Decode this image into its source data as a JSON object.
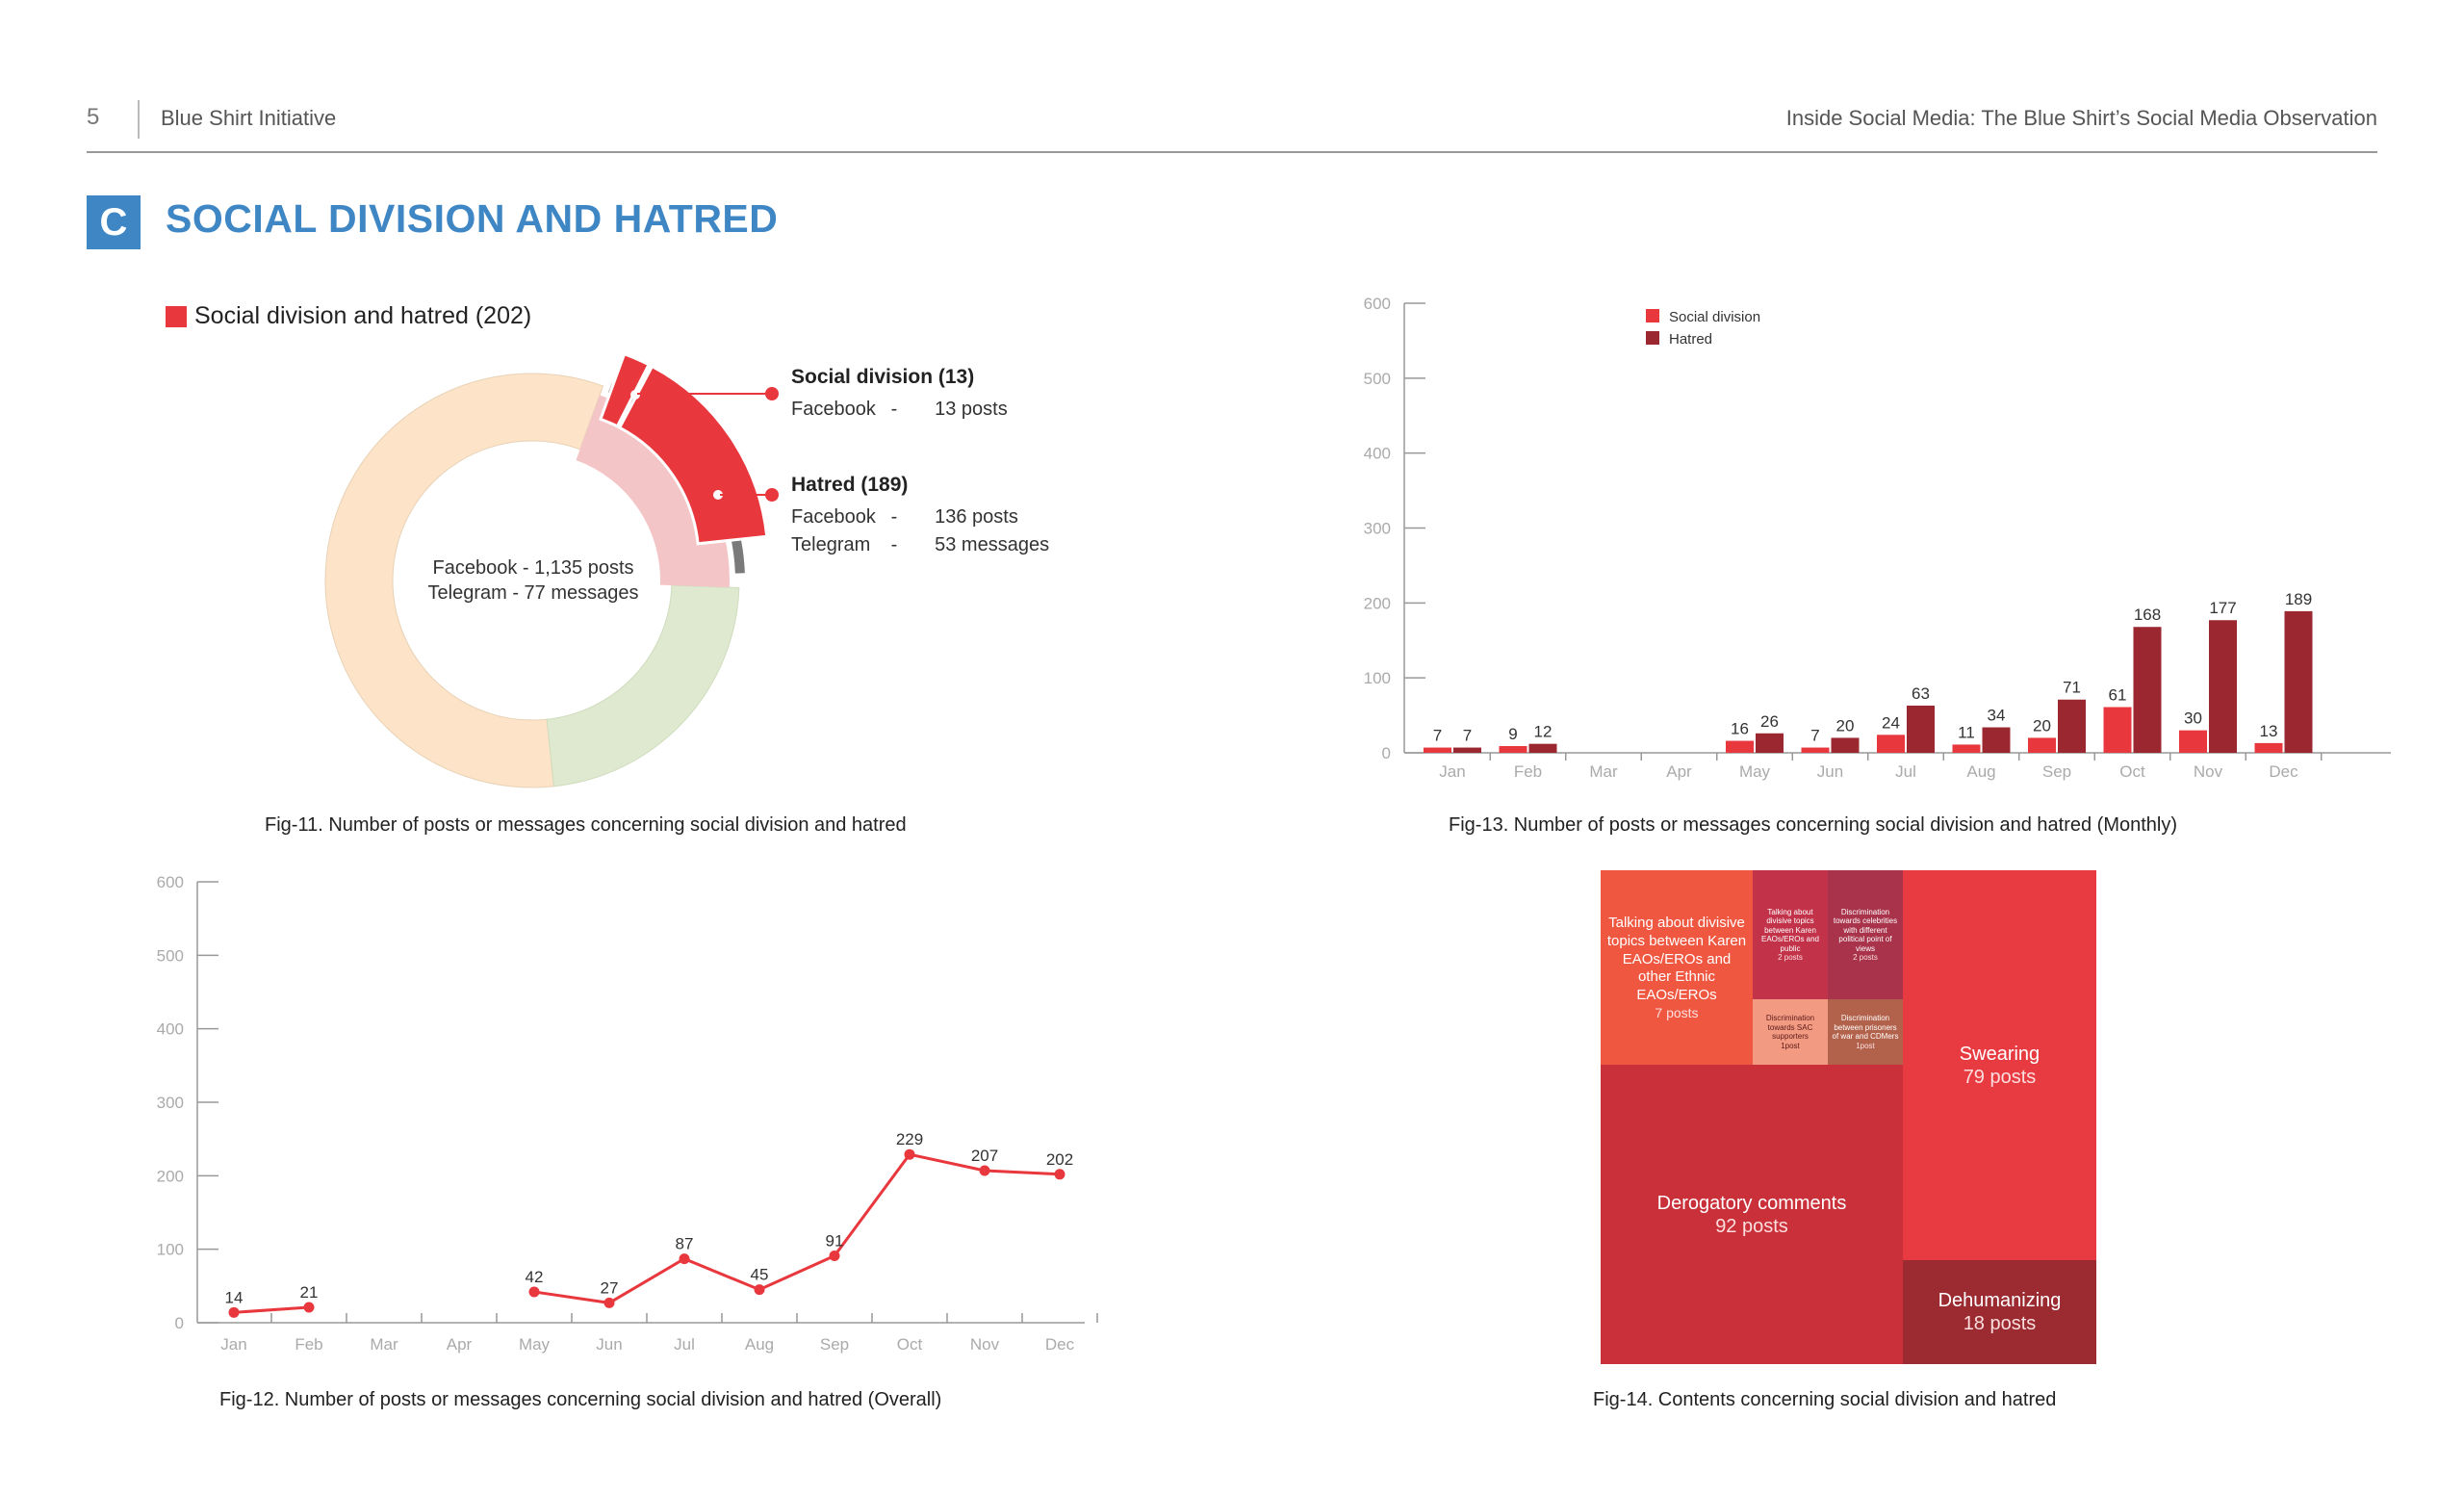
{
  "header": {
    "page_number": "5",
    "organization": "Blue Shirt Initiative",
    "report_title": "Inside Social Media: The Blue Shirt’s Social Media Observation"
  },
  "section": {
    "badge": "C",
    "title": "SOCIAL DIVISION AND HATRED"
  },
  "colors": {
    "accent_blue": "#3e86c4",
    "social_division": "#e8383d",
    "hatred": "#9b2830",
    "facebook_ring": "#fde3c8",
    "telegram_ring": "#dfe9cf"
  },
  "fig11": {
    "legend": "Social division and hatred (202)",
    "center_line1": "Facebook - 1,135 posts",
    "center_line2": "Telegram - 77 messages",
    "callout_social": {
      "title": "Social division (13)",
      "rows": [
        {
          "platform": "Facebook",
          "sep": "-",
          "value": "13 posts"
        }
      ]
    },
    "callout_hatred": {
      "title": "Hatred (189)",
      "rows": [
        {
          "platform": "Facebook",
          "sep": "-",
          "value": "136 posts"
        },
        {
          "platform": "Telegram",
          "sep": "-",
          "value": "53 messages"
        }
      ]
    },
    "caption": "Fig-11. Number of posts or messages concerning social division and hatred"
  },
  "fig12": {
    "caption": "Fig-12. Number of posts or messages concerning social division and hatred (Overall)"
  },
  "fig13": {
    "caption": "Fig-13. Number of posts or messages concerning social division and hatred (Monthly)"
  },
  "fig14": {
    "caption": "Fig-14. Contents concerning social division and hatred"
  },
  "chart_data": [
    {
      "id": "fig11",
      "type": "pie",
      "title": "Social division and hatred (202)",
      "slices": [
        {
          "label": "Facebook",
          "value": 1135
        },
        {
          "label": "Telegram",
          "value": 77
        },
        {
          "label": "Social division",
          "value": 13
        },
        {
          "label": "Hatred",
          "value": 189
        }
      ]
    },
    {
      "id": "fig12",
      "type": "line",
      "categories": [
        "Jan",
        "Feb",
        "Mar",
        "Apr",
        "May",
        "Jun",
        "Jul",
        "Aug",
        "Sep",
        "Oct",
        "Nov",
        "Dec"
      ],
      "series": [
        {
          "name": "",
          "values": [
            14,
            21,
            null,
            null,
            42,
            27,
            87,
            45,
            91,
            229,
            207,
            202
          ]
        }
      ],
      "ylim": [
        0,
        600
      ],
      "yticks": [
        0,
        100,
        200,
        300,
        400,
        500,
        600
      ]
    },
    {
      "id": "fig13",
      "type": "bar",
      "categories": [
        "Jan",
        "Feb",
        "Mar",
        "Apr",
        "May",
        "Jun",
        "Jul",
        "Aug",
        "Sep",
        "Oct",
        "Nov",
        "Dec"
      ],
      "series": [
        {
          "name": "Social division",
          "values": [
            7,
            9,
            null,
            null,
            16,
            7,
            24,
            11,
            20,
            61,
            30,
            13
          ]
        },
        {
          "name": "Hatred",
          "values": [
            7,
            12,
            null,
            null,
            26,
            20,
            63,
            34,
            71,
            168,
            177,
            189
          ]
        }
      ],
      "ylim": [
        0,
        600
      ],
      "yticks": [
        0,
        100,
        200,
        300,
        400,
        500,
        600
      ],
      "legend": "top-left"
    },
    {
      "id": "fig14",
      "type": "treemap",
      "items": [
        {
          "label": "Talking about divisive topics between Karen EAOs/EROs and other Ethnic EAOs/EROs",
          "count": "7 posts",
          "value": 7
        },
        {
          "label": "Talking about divisive topics between Karen EAOs/EROs and public",
          "count": "2 posts",
          "value": 2
        },
        {
          "label": "Discrimination towards celebrities with different political point of views",
          "count": "2 posts",
          "value": 2
        },
        {
          "label": "Discrimination towards SAC supporters",
          "count": "1post",
          "value": 1
        },
        {
          "label": "Discrimination between prisoners of war and CDMers",
          "count": "1post",
          "value": 1
        },
        {
          "label": "Derogatory comments",
          "count": "92 posts",
          "value": 92
        },
        {
          "label": "Swearing",
          "count": "79 posts",
          "value": 79
        },
        {
          "label": "Dehumanizing",
          "count": "18 posts",
          "value": 18
        }
      ]
    }
  ]
}
